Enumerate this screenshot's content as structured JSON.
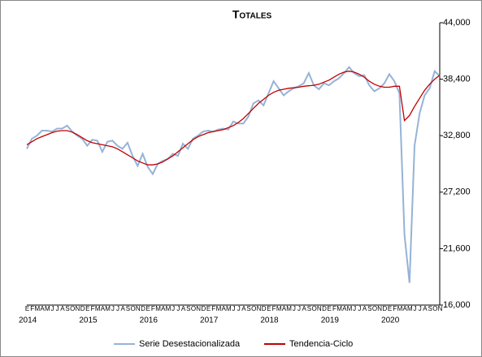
{
  "chart_data": {
    "type": "line",
    "title": "Totales",
    "categories": [
      "E",
      "F",
      "M",
      "A",
      "M",
      "J",
      "J",
      "A",
      "S",
      "O",
      "N",
      "D",
      "E",
      "F",
      "M",
      "A",
      "M",
      "J",
      "J",
      "A",
      "S",
      "O",
      "N",
      "D",
      "E",
      "F",
      "M",
      "A",
      "M",
      "J",
      "J",
      "A",
      "S",
      "O",
      "N",
      "D",
      "E",
      "F",
      "M",
      "A",
      "M",
      "J",
      "J",
      "A",
      "S",
      "O",
      "N",
      "D",
      "E",
      "F",
      "M",
      "A",
      "M",
      "J",
      "J",
      "A",
      "S",
      "O",
      "N",
      "D",
      "E",
      "F",
      "M",
      "A",
      "M",
      "J",
      "J",
      "A",
      "S",
      "O",
      "N",
      "D",
      "E",
      "F",
      "M",
      "A",
      "M",
      "J",
      "J",
      "A",
      "S",
      "O",
      "N"
    ],
    "years": [
      "2014",
      "2015",
      "2016",
      "2017",
      "2018",
      "2019",
      "2020"
    ],
    "series": [
      {
        "name": "Serie Desestacionalizada",
        "color": "#95b3d7",
        "values": [
          31500,
          32500,
          32800,
          33300,
          33300,
          33200,
          33500,
          33500,
          33800,
          33200,
          32800,
          32500,
          31800,
          32400,
          32300,
          31200,
          32200,
          32300,
          31800,
          31500,
          32100,
          30800,
          29800,
          31000,
          29700,
          29000,
          30000,
          30300,
          30500,
          31000,
          30800,
          32000,
          31500,
          32500,
          32800,
          33200,
          33300,
          33200,
          33400,
          33500,
          33400,
          34200,
          34000,
          34000,
          34700,
          36000,
          36300,
          35800,
          37000,
          38200,
          37500,
          36800,
          37200,
          37500,
          37700,
          38000,
          39000,
          37800,
          37400,
          38000,
          37800,
          38200,
          38500,
          39000,
          39600,
          39000,
          38700,
          38800,
          37800,
          37200,
          37500,
          38000,
          38900,
          38200,
          37000,
          23000,
          18200,
          31800,
          35000,
          36800,
          37500,
          39200,
          38700
        ]
      },
      {
        "name": "Tendencia-Ciclo",
        "color": "#c00000",
        "values": [
          31900,
          32200,
          32500,
          32700,
          32900,
          33100,
          33250,
          33300,
          33300,
          33150,
          32900,
          32600,
          32300,
          32100,
          32000,
          31900,
          31800,
          31700,
          31500,
          31200,
          30900,
          30600,
          30300,
          30100,
          29900,
          29900,
          30000,
          30200,
          30500,
          30800,
          31200,
          31600,
          32000,
          32400,
          32700,
          32900,
          33100,
          33200,
          33300,
          33400,
          33600,
          33800,
          34100,
          34500,
          35000,
          35500,
          36000,
          36400,
          36800,
          37100,
          37300,
          37400,
          37500,
          37550,
          37600,
          37700,
          37750,
          37800,
          37900,
          38100,
          38300,
          38600,
          38900,
          39100,
          39200,
          39100,
          38900,
          38600,
          38200,
          37900,
          37700,
          37600,
          37600,
          37700,
          37700,
          34300,
          34800,
          35700,
          36500,
          37300,
          37900,
          38400,
          38800
        ]
      }
    ],
    "ylim": [
      16000,
      44000
    ],
    "yticks": [
      {
        "value": 16000,
        "label": "16,000"
      },
      {
        "value": 21600,
        "label": "21,600"
      },
      {
        "value": 27200,
        "label": "27,200"
      },
      {
        "value": 32800,
        "label": "32,800"
      },
      {
        "value": 38400,
        "label": "38,400"
      },
      {
        "value": 44000,
        "label": "44,000"
      }
    ],
    "grid": false
  }
}
